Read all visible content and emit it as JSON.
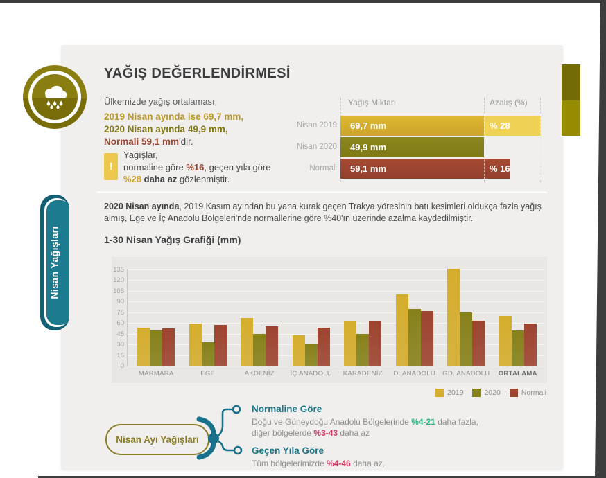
{
  "page_title": "YAĞIŞ DEĞERLENDİRMESİ",
  "side_tab": {
    "label": "Nisan Yağışları"
  },
  "summary": {
    "intro": "Ülkemizde yağış ortalaması;",
    "line_2019": "2019 Nisan ayında ise 69,7 mm,",
    "line_2020": "2020 Nisan ayında 49,9 mm,",
    "line_normal": "Normali 59,1 mm",
    "line_normal_suffix": "'dir."
  },
  "note": {
    "icon": "!",
    "line1": "Yağışlar,",
    "line2_pre": "normaline göre ",
    "line2_pct": "%16",
    "line2_post": ", geçen yıla göre",
    "line3_pct": "%28",
    "line3_bold": " daha az ",
    "line3_post": "gözlenmiştir."
  },
  "mini_chart": {
    "col_value_header": "Yağış Miktarı",
    "col_pct_header": "Azalış (%)",
    "rows": [
      {
        "label": "Nisan 2019",
        "value_mm": 69.7,
        "value_text": "69,7 mm",
        "pct_text": "% 28",
        "series": "y2019",
        "has_excess": true
      },
      {
        "label": "Nisan 2020",
        "value_mm": 49.9,
        "value_text": "49,9 mm",
        "pct_text": "",
        "series": "y2020",
        "has_excess": false
      },
      {
        "label": "Normali",
        "value_mm": 59.1,
        "value_text": "59,1 mm",
        "pct_text": "% 16",
        "series": "normal",
        "has_excess": false
      }
    ]
  },
  "paragraph": {
    "bold": "2020 Nisan ayında",
    "rest": ", 2019 Kasım ayından bu yana kurak geçen Trakya yöresinin batı kesimleri oldukça fazla yağış almış, Ege ve İç Anadolu Bölgeleri'nde normallerine göre %40'ın üzerinde azalma kaydedilmiştir."
  },
  "chart_data": {
    "type": "bar",
    "title": "1-30 Nisan Yağış Grafiği (mm)",
    "categories": [
      "MARMARA",
      "EGE",
      "AKDENİZ",
      "İÇ ANADOLU",
      "KARADENİZ",
      "D. ANADOLU",
      "GD. ANADOLU",
      "ORTALAMA"
    ],
    "series": [
      {
        "name": "2019",
        "color": "#d5ad2d",
        "values": [
          53,
          59,
          67,
          43,
          62,
          100,
          136,
          69.7
        ]
      },
      {
        "name": "2020",
        "color": "#87811b",
        "values": [
          50,
          33,
          45,
          31,
          45,
          80,
          75,
          49.9
        ]
      },
      {
        "name": "Normali",
        "color": "#9d4430",
        "values": [
          52,
          57,
          55,
          53,
          62,
          77,
          63,
          59.1
        ]
      }
    ],
    "ylim": [
      0,
      135
    ],
    "ytick_step": 15,
    "grid": true,
    "legend_position": "bottom-right",
    "bold_category": "ORTALAMA",
    "xlabel": "",
    "ylabel": ""
  },
  "bottom": {
    "pill_label": "Nisan Ayı Yağışları",
    "branch1": {
      "title": "Normaline Göre",
      "line1_pre": "Doğu ve Güneydoğu Anadolu Bölgelerinde ",
      "line1_pct": "%4-21",
      "line1_post": " daha fazla,",
      "line2_pre": "diğer bölgelerde ",
      "line2_pct": "%3-43",
      "line2_post": " daha az"
    },
    "branch2": {
      "title": "Geçen Yıla Göre",
      "line_pre": "Tüm bölgelerimizde ",
      "line_pct": "%4-46",
      "line_post": " daha az."
    }
  },
  "colors": {
    "gold": "#d5ad2d",
    "gold_light": "#eed155",
    "olive": "#87811b",
    "brick": "#9d4430",
    "teal": "#17718a",
    "green": "#2eb586",
    "pink": "#d23a64",
    "frame": "#3d3d3d",
    "card": "#f0efed"
  }
}
